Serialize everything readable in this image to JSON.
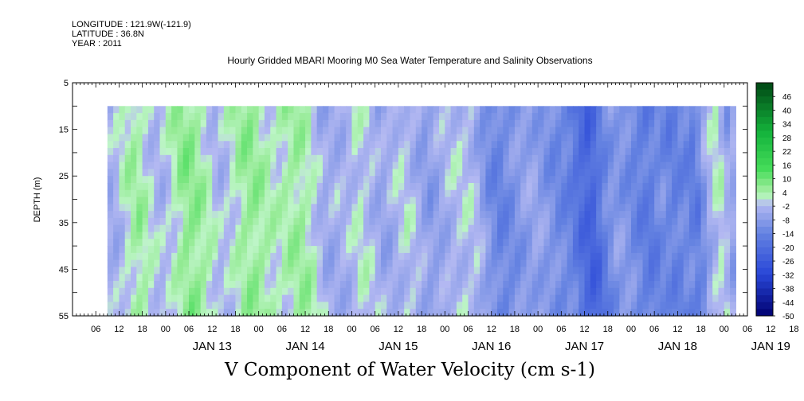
{
  "header": {
    "longitude": "LONGITUDE : 121.9W(-121.9)",
    "latitude": "LATITUDE : 36.8N",
    "year": "YEAR : 2011"
  },
  "chart_data": {
    "type": "heatmap",
    "title": "Hourly Gridded MBARI Mooring M0 Sea Water Temperature and Salinity Observations",
    "xlabel": "V Component of Water Velocity (cm s-1)",
    "ylabel": "DEPTH (m)",
    "y_range": [
      5,
      55
    ],
    "y_inverted": true,
    "y_ticks": [
      5,
      15,
      25,
      35,
      45,
      55
    ],
    "data_depth_range": [
      10,
      55
    ],
    "x_range_hours": [
      "2011-01-12 00:00",
      "2011-01-19 06:00"
    ],
    "data_time_range": [
      "2011-01-12 09:00",
      "2011-01-19 03:00"
    ],
    "x_hour_ticks": [
      "06",
      "12",
      "18",
      "00",
      "06",
      "12",
      "18",
      "00",
      "06",
      "12",
      "18",
      "00",
      "06",
      "12",
      "18",
      "00",
      "06",
      "12",
      "18",
      "00",
      "06",
      "12",
      "18",
      "00",
      "06",
      "12",
      "18",
      "00",
      "06",
      "12",
      "18",
      "00"
    ],
    "x_day_labels": [
      "JAN 13",
      "JAN 14",
      "JAN 15",
      "JAN 16",
      "JAN 17",
      "JAN 18",
      "JAN 19"
    ],
    "colorbar": {
      "min": -50,
      "max": 52,
      "step": 3,
      "labels": [
        46,
        40,
        34,
        28,
        22,
        16,
        10,
        4,
        -2,
        -8,
        -14,
        -20,
        -26,
        -32,
        -38,
        -44,
        -50
      ]
    },
    "time_profile": [
      {
        "hour": 9,
        "v": -4
      },
      {
        "hour": 12,
        "v": 2
      },
      {
        "hour": 15,
        "v": 5
      },
      {
        "hour": 18,
        "v": 0
      },
      {
        "hour": 21,
        "v": -3
      },
      {
        "hour": 24,
        "v": 1
      },
      {
        "hour": 27,
        "v": 7
      },
      {
        "hour": 30,
        "v": 6
      },
      {
        "hour": 33,
        "v": 2
      },
      {
        "hour": 36,
        "v": -3
      },
      {
        "hour": 39,
        "v": 0
      },
      {
        "hour": 42,
        "v": 5
      },
      {
        "hour": 45,
        "v": 6
      },
      {
        "hour": 48,
        "v": 3
      },
      {
        "hour": 51,
        "v": 1
      },
      {
        "hour": 54,
        "v": 4
      },
      {
        "hour": 57,
        "v": 5
      },
      {
        "hour": 60,
        "v": 1
      },
      {
        "hour": 63,
        "v": -5
      },
      {
        "hour": 66,
        "v": -4
      },
      {
        "hour": 69,
        "v": -3
      },
      {
        "hour": 72,
        "v": 1
      },
      {
        "hour": 75,
        "v": -2
      },
      {
        "hour": 78,
        "v": -6
      },
      {
        "hour": 81,
        "v": -3
      },
      {
        "hour": 84,
        "v": 0
      },
      {
        "hour": 87,
        "v": -4
      },
      {
        "hour": 90,
        "v": -8
      },
      {
        "hour": 93,
        "v": -5
      },
      {
        "hour": 96,
        "v": -2
      },
      {
        "hour": 99,
        "v": -1
      },
      {
        "hour": 102,
        "v": -2
      },
      {
        "hour": 105,
        "v": -10
      },
      {
        "hour": 108,
        "v": -14
      },
      {
        "hour": 111,
        "v": -11
      },
      {
        "hour": 114,
        "v": -8
      },
      {
        "hour": 117,
        "v": -6
      },
      {
        "hour": 120,
        "v": -9
      },
      {
        "hour": 123,
        "v": -12
      },
      {
        "hour": 126,
        "v": -13
      },
      {
        "hour": 129,
        "v": -20
      },
      {
        "hour": 132,
        "v": -24
      },
      {
        "hour": 135,
        "v": -14
      },
      {
        "hour": 138,
        "v": -8
      },
      {
        "hour": 141,
        "v": -10
      },
      {
        "hour": 144,
        "v": -14
      },
      {
        "hour": 147,
        "v": -16
      },
      {
        "hour": 150,
        "v": -11
      },
      {
        "hour": 153,
        "v": -15
      },
      {
        "hour": 156,
        "v": -12
      },
      {
        "hour": 159,
        "v": -16
      },
      {
        "hour": 162,
        "v": -4
      },
      {
        "hour": 165,
        "v": 2
      },
      {
        "hour": 168,
        "v": -8
      },
      {
        "hour": 171,
        "v": 4
      }
    ]
  }
}
